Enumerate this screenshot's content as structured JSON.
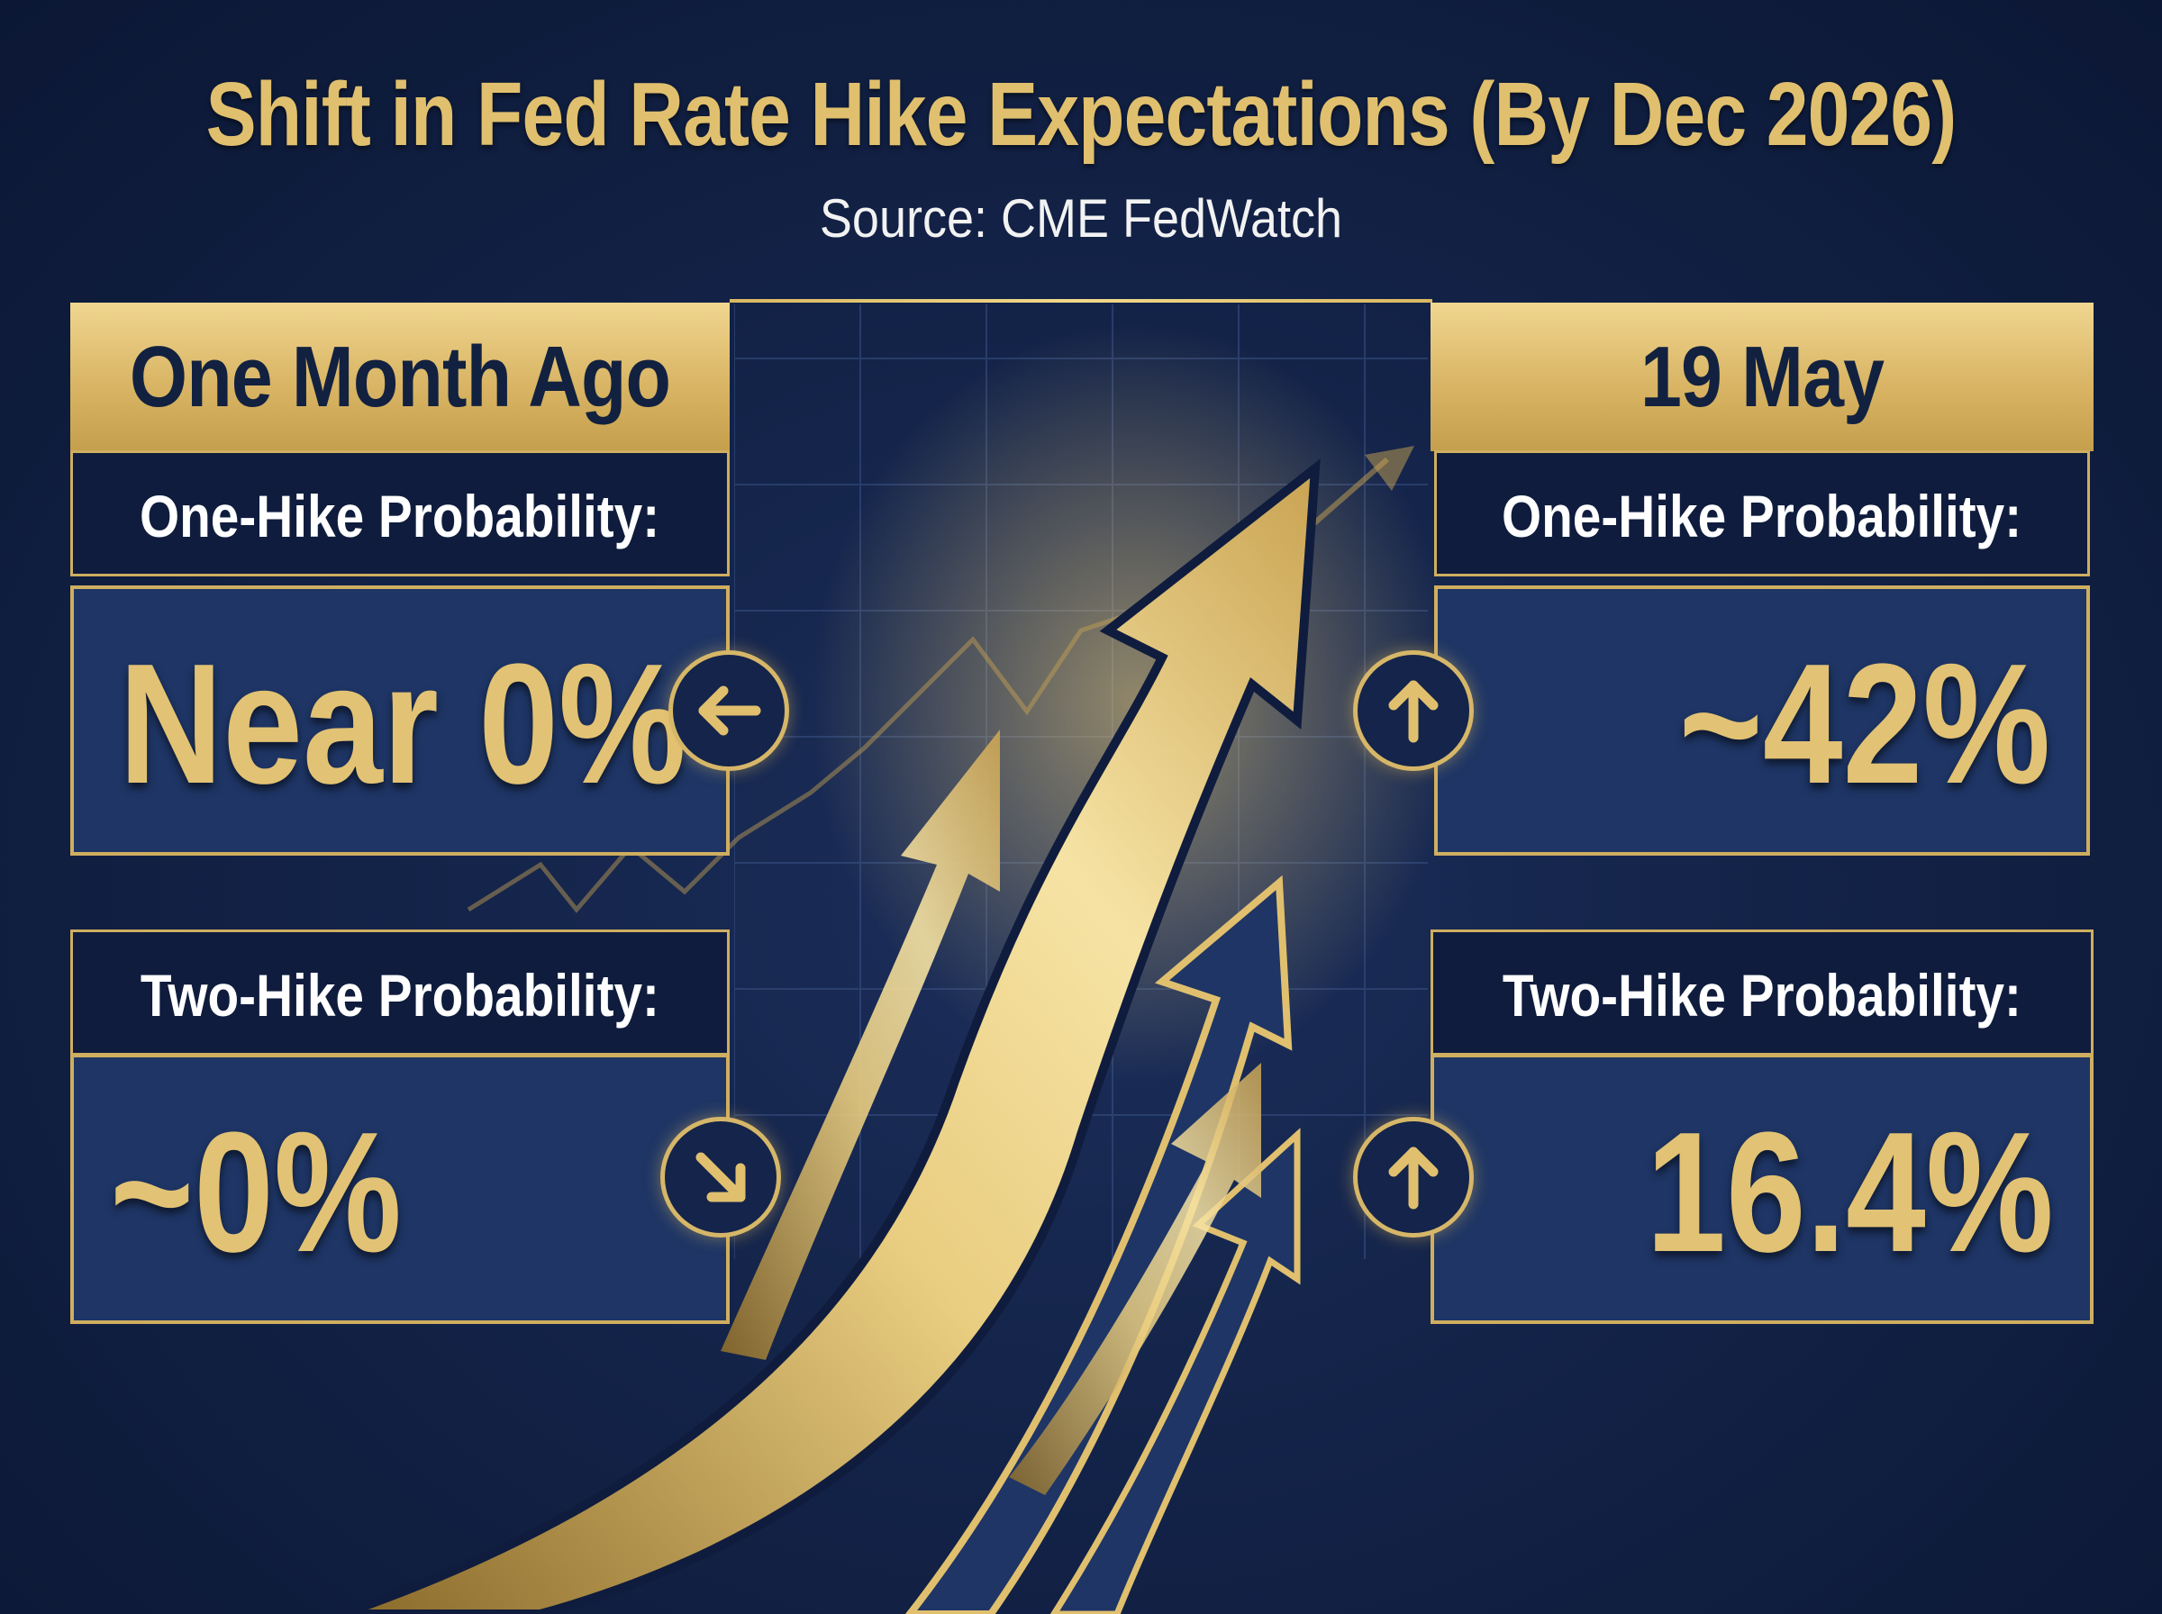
{
  "title": "Shift in Fed Rate Hike Expectations (By Dec 2026)",
  "subtitle": "Source: CME FedWatch",
  "left": {
    "header": "One Month Ago",
    "one_hike_label": "One-Hike Probability:",
    "one_hike_value": "Near 0%",
    "one_hike_icon": "arrow-left-icon",
    "two_hike_label": "Two-Hike Probability:",
    "two_hike_value": "~0%",
    "two_hike_icon": "arrow-down-right-icon"
  },
  "right": {
    "header": "19 May",
    "one_hike_label": "One-Hike Probability:",
    "one_hike_value": "~42%",
    "one_hike_icon": "arrow-up-icon",
    "two_hike_label": "Two-Hike Probability:",
    "two_hike_value": "16.4%",
    "two_hike_icon": "arrow-up-icon"
  },
  "colors": {
    "background": "#14244a",
    "gold": "#e0c06e",
    "panel_blue": "#1e3565",
    "label_dark": "#0f1c3d"
  }
}
